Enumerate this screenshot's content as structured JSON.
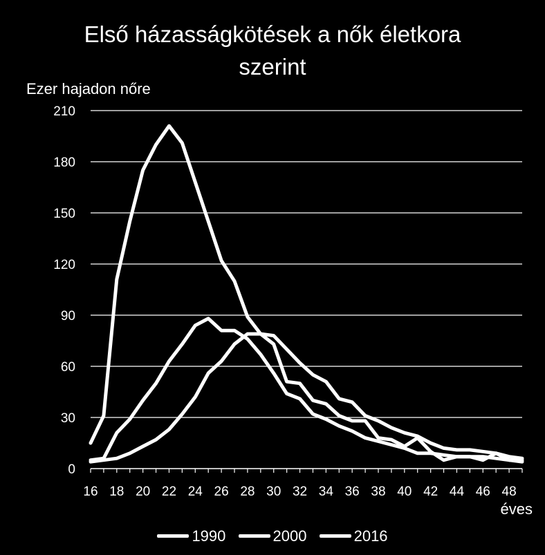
{
  "chart_data": {
    "type": "line",
    "title_line1": "Első házasságkötések a nők életkora",
    "title_line2": "szerint",
    "ylabel": "Ezer hajadon nőre",
    "xlabel": "éves",
    "ylim": [
      0,
      210
    ],
    "yticks": [
      0,
      30,
      60,
      90,
      120,
      150,
      180,
      210
    ],
    "xlim": [
      16,
      49
    ],
    "xticks": [
      16,
      18,
      20,
      22,
      24,
      26,
      28,
      30,
      32,
      34,
      36,
      38,
      40,
      42,
      44,
      46,
      48
    ],
    "grid": true,
    "legend_position": "bottom",
    "line_color": "#ffffff",
    "background": "#000000",
    "series": [
      {
        "name": "1990",
        "x": [
          16,
          17,
          18,
          19,
          20,
          21,
          22,
          23,
          24,
          25,
          26,
          27,
          28,
          29,
          30,
          31,
          32,
          33,
          34,
          35,
          36,
          37,
          38,
          39,
          40,
          41,
          42,
          43,
          44,
          45,
          46,
          47,
          48,
          49
        ],
        "values": [
          15,
          31,
          111,
          145,
          175,
          190,
          201,
          191,
          168,
          145,
          122,
          110,
          89,
          79,
          73,
          51,
          50,
          40,
          38,
          31,
          28,
          28,
          18,
          17,
          13,
          18,
          10,
          5,
          7,
          7,
          5,
          9,
          5,
          4
        ]
      },
      {
        "name": "2000",
        "x": [
          16,
          17,
          18,
          19,
          20,
          21,
          22,
          23,
          24,
          25,
          26,
          27,
          28,
          29,
          30,
          31,
          32,
          33,
          34,
          35,
          36,
          37,
          38,
          39,
          40,
          41,
          42,
          43,
          44,
          45,
          46,
          47,
          48,
          49
        ],
        "values": [
          5,
          6,
          21,
          29,
          40,
          50,
          63,
          73,
          84,
          88,
          81,
          81,
          76,
          67,
          56,
          44,
          41,
          32,
          29,
          25,
          22,
          18,
          16,
          14,
          12,
          9,
          9,
          8,
          7,
          7,
          7,
          6,
          5,
          5
        ]
      },
      {
        "name": "2016",
        "x": [
          16,
          17,
          18,
          19,
          20,
          21,
          22,
          23,
          24,
          25,
          26,
          27,
          28,
          29,
          30,
          31,
          32,
          33,
          34,
          35,
          36,
          37,
          38,
          39,
          40,
          41,
          42,
          43,
          44,
          45,
          46,
          47,
          48,
          49
        ],
        "values": [
          4,
          5,
          6,
          9,
          13,
          17,
          23,
          32,
          42,
          56,
          63,
          73,
          79,
          79,
          78,
          70,
          62,
          55,
          51,
          41,
          39,
          31,
          28,
          24,
          21,
          19,
          15,
          12,
          11,
          11,
          10,
          9,
          7,
          6
        ]
      }
    ]
  }
}
